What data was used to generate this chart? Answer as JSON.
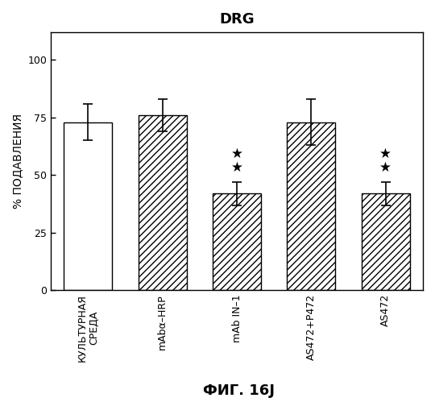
{
  "title": "DRG",
  "ylabel": "% ПОДАВЛЕНИЯ",
  "xlabel": "ФИГ. 16J",
  "categories": [
    "КУЛЬТУРНАЯ\nСРЕДА",
    "mAbα–HRP",
    "mAb IN–1",
    "AS472+P472",
    "AS472"
  ],
  "values": [
    73,
    76,
    42,
    73,
    42
  ],
  "errors": [
    8,
    7,
    5,
    10,
    5
  ],
  "bar_colors": [
    "white",
    "white",
    "white",
    "white",
    "white"
  ],
  "hatch_patterns": [
    "",
    "////",
    "////",
    "////",
    "////"
  ],
  "stars": [
    false,
    false,
    true,
    false,
    true
  ],
  "ylim": [
    0,
    112
  ],
  "yticks": [
    0,
    25,
    50,
    75,
    100
  ],
  "background_color": "#ffffff",
  "bar_edge_color": "#000000",
  "title_fontsize": 13,
  "label_fontsize": 10,
  "tick_fontsize": 9,
  "xlabel_fontsize": 13
}
